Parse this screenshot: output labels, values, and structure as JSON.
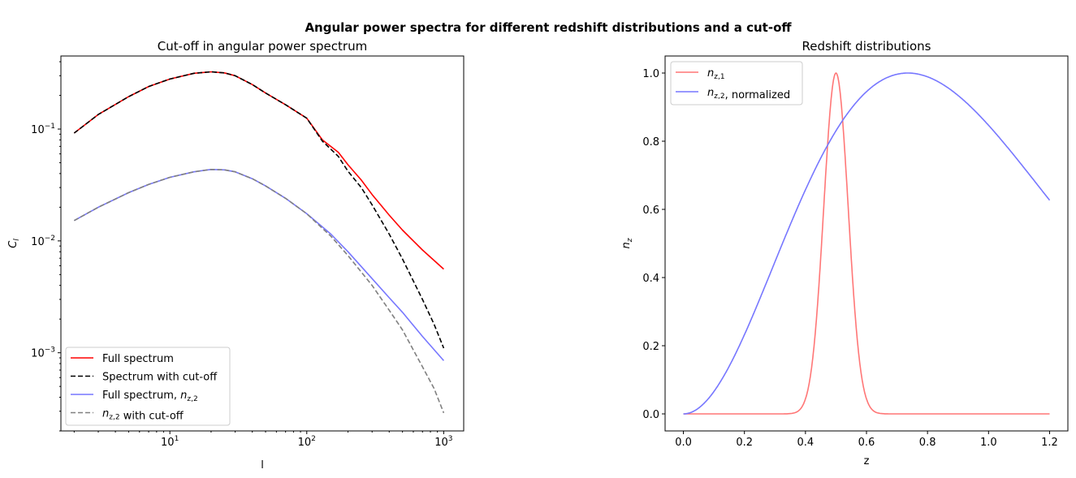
{
  "figure": {
    "suptitle": "Angular power spectra for different redshift distributions and a cut-off"
  },
  "chart_data": [
    {
      "type": "line",
      "title": "Cut-off in angular power spectrum",
      "xlabel": "l",
      "ylabel": "C_l",
      "xscale": "log",
      "yscale": "log",
      "xlim": [
        1.6,
        1400
      ],
      "ylim": [
        0.0002,
        0.45
      ],
      "xtick_labels": [
        "10^1",
        "10^2",
        "10^3"
      ],
      "ytick_labels": [
        "10^-3",
        "10^-2",
        "10^-1"
      ],
      "grid": false,
      "legend_position": "lower left",
      "series": [
        {
          "name": "Full spectrum",
          "color": "#ff0000",
          "dash": "solid",
          "x": [
            2,
            3,
            5,
            7,
            10,
            15,
            20,
            25,
            30,
            40,
            50,
            70,
            100,
            130,
            170,
            200,
            250,
            300,
            400,
            500,
            700,
            1000
          ],
          "y": [
            0.092,
            0.135,
            0.195,
            0.24,
            0.28,
            0.315,
            0.325,
            0.318,
            0.3,
            0.25,
            0.21,
            0.165,
            0.125,
            0.08,
            0.062,
            0.048,
            0.035,
            0.026,
            0.017,
            0.0125,
            0.0083,
            0.0056
          ]
        },
        {
          "name": "Spectrum with cut-off",
          "color": "#000000",
          "dash": "dashed",
          "x": [
            2,
            3,
            5,
            7,
            10,
            15,
            20,
            25,
            30,
            40,
            50,
            70,
            100,
            130,
            170,
            200,
            250,
            300,
            400,
            500,
            700,
            850,
            1000
          ],
          "y": [
            0.092,
            0.135,
            0.195,
            0.24,
            0.28,
            0.315,
            0.325,
            0.318,
            0.3,
            0.25,
            0.21,
            0.165,
            0.125,
            0.078,
            0.057,
            0.042,
            0.03,
            0.021,
            0.0115,
            0.0069,
            0.003,
            0.0018,
            0.0011
          ]
        },
        {
          "name": "Full spectrum,  n_{z,2}",
          "color": "#7777ff",
          "dash": "solid",
          "x": [
            2,
            3,
            5,
            7,
            10,
            15,
            20,
            25,
            30,
            40,
            50,
            70,
            100,
            150,
            200,
            300,
            400,
            500,
            700,
            1000
          ],
          "y": [
            0.0152,
            0.02,
            0.027,
            0.032,
            0.037,
            0.0415,
            0.0435,
            0.0432,
            0.0415,
            0.036,
            0.031,
            0.024,
            0.0175,
            0.0115,
            0.008,
            0.0046,
            0.0031,
            0.0023,
            0.0014,
            0.00085
          ]
        },
        {
          "name": "n_{z,2} with cut-off",
          "color": "#808080",
          "dash": "dashed",
          "x": [
            2,
            3,
            5,
            7,
            10,
            15,
            20,
            25,
            30,
            40,
            50,
            70,
            100,
            150,
            200,
            300,
            400,
            500,
            700,
            850,
            1000
          ],
          "y": [
            0.0152,
            0.02,
            0.027,
            0.032,
            0.037,
            0.0415,
            0.0435,
            0.0432,
            0.0415,
            0.036,
            0.031,
            0.024,
            0.0175,
            0.011,
            0.0074,
            0.004,
            0.0024,
            0.0016,
            0.00075,
            0.00048,
            0.00029
          ]
        }
      ]
    },
    {
      "type": "line",
      "title": "Redshift distributions",
      "xlabel": "z",
      "ylabel": "n_z",
      "xlim": [
        -0.06,
        1.26
      ],
      "ylim": [
        -0.05,
        1.05
      ],
      "xticks": [
        "0.0",
        "0.2",
        "0.4",
        "0.6",
        "0.8",
        "1.0",
        "1.2"
      ],
      "yticks": [
        "0.0",
        "0.2",
        "0.4",
        "0.6",
        "0.8",
        "1.0"
      ],
      "grid": false,
      "legend_position": "upper left",
      "series": [
        {
          "name": "n_{z,1}",
          "color": "#ff7777",
          "dash": "solid",
          "model": "gaussian",
          "mu": 0.5,
          "sigma": 0.04,
          "domain": [
            0,
            1.2
          ]
        },
        {
          "name": "n_{z,2}, normalized",
          "color": "#7777ff",
          "dash": "solid",
          "model": "smail",
          "alpha": 2,
          "beta": 1.5,
          "z0": 0.607,
          "domain": [
            0,
            1.2
          ]
        }
      ]
    }
  ]
}
